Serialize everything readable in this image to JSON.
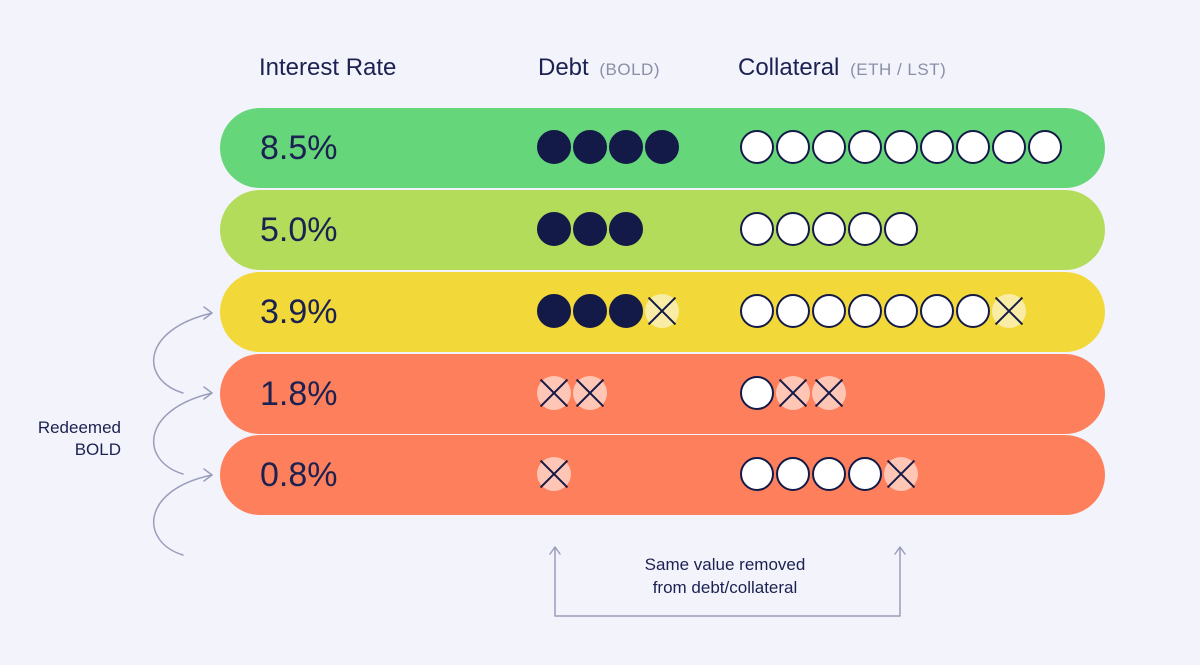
{
  "headers": {
    "interest_rate": "Interest Rate",
    "debt": "Debt",
    "debt_unit": "(BOLD)",
    "collateral": "Collateral",
    "collateral_unit": "(ETH / LST)"
  },
  "rows": [
    {
      "rate": "8.5%",
      "color": "#66d67b",
      "debt": {
        "filled": 4,
        "crossed": 0
      },
      "collateral": {
        "empty": 9,
        "crossed": 0
      }
    },
    {
      "rate": "5.0%",
      "color": "#b3dc5b",
      "debt": {
        "filled": 3,
        "crossed": 0
      },
      "collateral": {
        "empty": 5,
        "crossed": 0
      }
    },
    {
      "rate": "3.9%",
      "color": "#f2d839",
      "debt": {
        "filled": 3,
        "crossed": 1
      },
      "collateral": {
        "empty": 7,
        "crossed": 1
      }
    },
    {
      "rate": "1.8%",
      "color": "#fe7f5c",
      "debt": {
        "filled": 0,
        "crossed": 2
      },
      "collateral": {
        "empty": 1,
        "crossed": 2
      }
    },
    {
      "rate": "0.8%",
      "color": "#fe7f5c",
      "debt": {
        "filled": 0,
        "crossed": 1
      },
      "collateral": {
        "empty": 4,
        "crossed": 1
      }
    }
  ],
  "side_label": {
    "line1": "Redeemed",
    "line2": "BOLD"
  },
  "bottom_note": {
    "line1": "Same value removed",
    "line2": "from debt/collateral"
  },
  "colors": {
    "ink": "#1b2150",
    "dot": "#141a47",
    "arrow": "#9a9dbc",
    "background": "#f3f3fb"
  }
}
